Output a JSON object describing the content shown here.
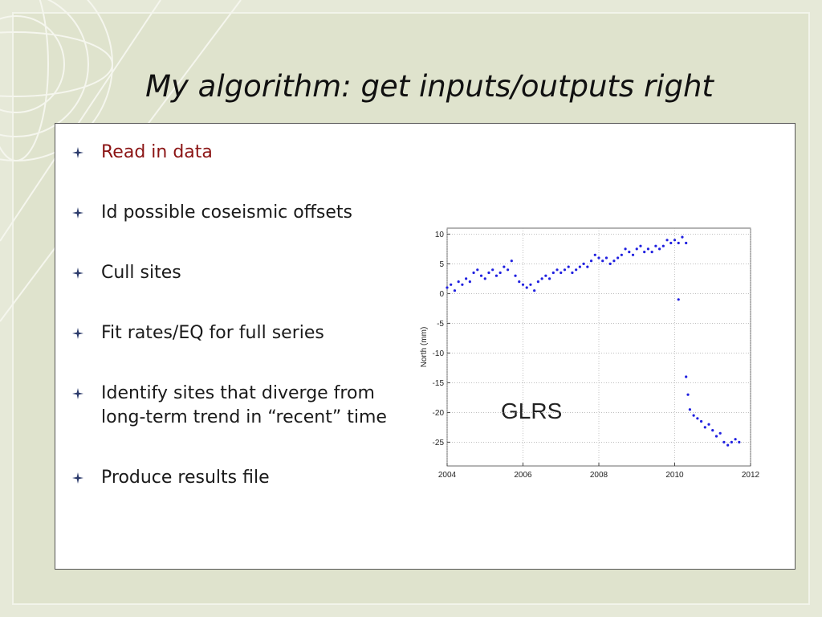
{
  "title": "My algorithm: get inputs/outputs right",
  "bullets": [
    "Read in data",
    "Id possible coseismic offsets",
    "Cull sites",
    "Fit rates/EQ for full series",
    "Identify sites that diverge from long-term trend in “recent” time",
    "Produce results file"
  ],
  "chart_data": {
    "type": "scatter",
    "y_label": "North (mm)",
    "annotation": "GLRS",
    "color": "#2020e0",
    "grid": true,
    "xlim": [
      2004,
      2012
    ],
    "xticks": [
      2004,
      2006,
      2008,
      2010,
      2012
    ],
    "ylim": [
      -29,
      11
    ],
    "yticks": [
      10,
      5,
      0,
      -5,
      -10,
      -15,
      -20,
      -25
    ],
    "x": [
      2004.0,
      2004.1,
      2004.2,
      2004.3,
      2004.4,
      2004.5,
      2004.6,
      2004.7,
      2004.8,
      2004.9,
      2005.0,
      2005.1,
      2005.2,
      2005.3,
      2005.4,
      2005.5,
      2005.6,
      2005.7,
      2005.8,
      2005.9,
      2006.0,
      2006.1,
      2006.2,
      2006.3,
      2006.4,
      2006.5,
      2006.6,
      2006.7,
      2006.8,
      2006.9,
      2007.0,
      2007.1,
      2007.2,
      2007.3,
      2007.4,
      2007.5,
      2007.6,
      2007.7,
      2007.8,
      2007.9,
      2008.0,
      2008.1,
      2008.2,
      2008.3,
      2008.4,
      2008.5,
      2008.6,
      2008.7,
      2008.8,
      2008.9,
      2009.0,
      2009.1,
      2009.2,
      2009.3,
      2009.4,
      2009.5,
      2009.6,
      2009.7,
      2009.8,
      2009.9,
      2010.0,
      2010.1,
      2010.2,
      2010.3,
      2010.3,
      2010.35,
      2010.4,
      2010.5,
      2010.6,
      2010.7,
      2010.8,
      2010.9,
      2011.0,
      2011.1,
      2011.2,
      2011.3,
      2011.4,
      2011.5,
      2011.6,
      2011.7,
      2010.1
    ],
    "y": [
      1,
      1.5,
      0.5,
      2,
      1.5,
      2.5,
      2,
      3.5,
      4,
      3,
      2.5,
      3.5,
      4,
      3,
      3.5,
      4.5,
      4,
      5.5,
      3,
      2,
      1.5,
      1,
      1.5,
      0.5,
      2,
      2.5,
      3,
      2.5,
      3.5,
      4,
      3.5,
      4,
      4.5,
      3.5,
      4,
      4.5,
      5,
      4.5,
      5.5,
      6.5,
      6,
      5.5,
      6,
      5,
      5.5,
      6,
      6.5,
      7.5,
      7,
      6.5,
      7.5,
      8,
      7,
      7.5,
      7,
      8,
      7.5,
      8,
      9,
      8.5,
      9,
      8.5,
      9.5,
      8.5,
      -14,
      -17,
      -19.5,
      -20.5,
      -21,
      -21.5,
      -22.5,
      -22,
      -23,
      -24,
      -23.5,
      -25,
      -25.5,
      -25,
      -24.5,
      -25,
      -1
    ]
  }
}
